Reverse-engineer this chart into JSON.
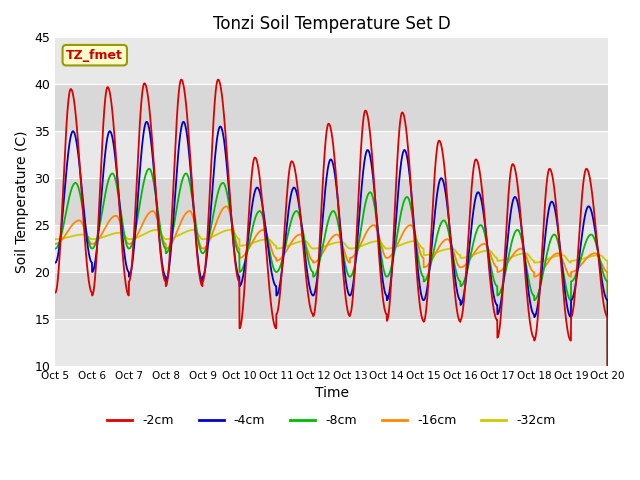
{
  "title": "Tonzi Soil Temperature Set D",
  "xlabel": "Time",
  "ylabel": "Soil Temperature (C)",
  "ylim": [
    10,
    45
  ],
  "xlim": [
    0,
    15
  ],
  "xtick_labels": [
    "Oct 5",
    "Oct 6",
    "Oct 7",
    "Oct 8",
    "Oct 9",
    "Oct 10",
    "Oct 11",
    "Oct 12",
    "Oct 13",
    "Oct 14",
    "Oct 15",
    "Oct 16",
    "Oct 17",
    "Oct 18",
    "Oct 19",
    "Oct 20"
  ],
  "annotation_text": "TZ_fmet",
  "annotation_color": "#cc0000",
  "annotation_bg": "#ffffcc",
  "legend_labels": [
    "-2cm",
    "-4cm",
    "-8cm",
    "-16cm",
    "-32cm"
  ],
  "colors": [
    "#dd0000",
    "#0000cc",
    "#00bb00",
    "#ff8800",
    "#cccc00"
  ],
  "background_color": "#e8e8e8",
  "band_color_light": "#e8e8e8",
  "band_color_dark": "#d8d8d8",
  "title_fontsize": 12,
  "axis_label_fontsize": 10,
  "n_points": 3000,
  "days": 15,
  "peak_temps_2cm": [
    39.5,
    39.7,
    40.1,
    40.5,
    40.5,
    32.2,
    31.8,
    35.8,
    37.2,
    37.0,
    34.0,
    32.0,
    31.5,
    31.0,
    31.0
  ],
  "min_temps_2cm": [
    17.8,
    17.5,
    19.0,
    18.5,
    19.0,
    14.0,
    15.5,
    15.3,
    15.5,
    14.8,
    14.7,
    14.9,
    13.0,
    12.7,
    15.2
  ],
  "peak_temps_4cm": [
    35.0,
    35.0,
    36.0,
    36.0,
    35.5,
    29.0,
    29.0,
    32.0,
    33.0,
    33.0,
    30.0,
    28.5,
    28.0,
    27.5,
    27.0
  ],
  "min_temps_4cm": [
    21.0,
    20.0,
    19.5,
    19.0,
    19.5,
    18.5,
    17.5,
    17.5,
    17.5,
    17.0,
    17.0,
    16.5,
    15.5,
    15.2,
    17.0
  ],
  "peak_temps_8cm": [
    29.5,
    30.5,
    31.0,
    30.5,
    29.5,
    26.5,
    26.5,
    26.5,
    28.5,
    28.0,
    25.5,
    25.0,
    24.5,
    24.0,
    24.0
  ],
  "min_temps_8cm": [
    22.5,
    22.5,
    22.5,
    22.0,
    22.0,
    20.0,
    20.0,
    19.5,
    19.5,
    19.5,
    19.0,
    18.5,
    17.5,
    17.0,
    19.0
  ],
  "peak_temps_16cm": [
    25.5,
    26.0,
    26.5,
    26.5,
    27.0,
    24.5,
    24.0,
    24.0,
    25.0,
    25.0,
    23.5,
    23.0,
    22.5,
    22.0,
    22.0
  ],
  "min_temps_16cm": [
    23.0,
    23.0,
    23.0,
    22.5,
    22.5,
    21.5,
    21.2,
    21.0,
    21.5,
    21.5,
    20.5,
    20.5,
    20.0,
    19.5,
    20.0
  ],
  "peak_temps_32cm": [
    24.0,
    24.2,
    24.5,
    24.5,
    24.5,
    23.5,
    23.3,
    23.2,
    23.3,
    23.3,
    22.5,
    22.3,
    22.0,
    21.8,
    21.8
  ],
  "min_temps_32cm": [
    23.5,
    23.5,
    23.5,
    23.5,
    23.5,
    22.8,
    22.5,
    22.5,
    22.5,
    22.5,
    21.8,
    21.5,
    21.2,
    21.0,
    21.2
  ],
  "phase_peak_2cm": 0.42,
  "phase_peak_4cm": 0.48,
  "phase_peak_8cm": 0.55,
  "phase_peak_16cm": 0.65,
  "phase_peak_32cm": 0.78
}
